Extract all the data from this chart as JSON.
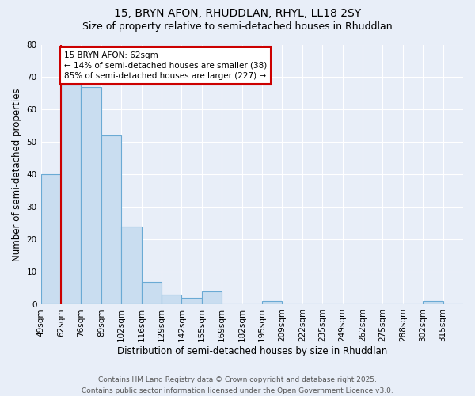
{
  "title_line1": "15, BRYN AFON, RHUDDLAN, RHYL, LL18 2SY",
  "title_line2": "Size of property relative to semi-detached houses in Rhuddlan",
  "xlabel": "Distribution of semi-detached houses by size in Rhuddlan",
  "ylabel": "Number of semi-detached properties",
  "categories": [
    "49sqm",
    "62sqm",
    "76sqm",
    "89sqm",
    "102sqm",
    "116sqm",
    "129sqm",
    "142sqm",
    "155sqm",
    "169sqm",
    "182sqm",
    "195sqm",
    "209sqm",
    "222sqm",
    "235sqm",
    "249sqm",
    "262sqm",
    "275sqm",
    "288sqm",
    "302sqm",
    "315sqm"
  ],
  "values": [
    40,
    68,
    67,
    52,
    24,
    7,
    3,
    2,
    4,
    0,
    0,
    1,
    0,
    0,
    0,
    0,
    0,
    0,
    0,
    1,
    0
  ],
  "bar_color": "#c9ddf0",
  "bar_edge_color": "#6aaad4",
  "bg_color": "#e8eef8",
  "grid_color": "#ffffff",
  "vline_color": "#cc0000",
  "annotation_title": "15 BRYN AFON: 62sqm",
  "annotation_line1": "← 14% of semi-detached houses are smaller (38)",
  "annotation_line2": "85% of semi-detached houses are larger (227) →",
  "annotation_box_color": "#ffffff",
  "annotation_box_edge_color": "#cc0000",
  "ylim": [
    0,
    80
  ],
  "yticks": [
    0,
    10,
    20,
    30,
    40,
    50,
    60,
    70,
    80
  ],
  "footer_line1": "Contains HM Land Registry data © Crown copyright and database right 2025.",
  "footer_line2": "Contains public sector information licensed under the Open Government Licence v3.0.",
  "title_fontsize": 10,
  "subtitle_fontsize": 9,
  "axis_label_fontsize": 8.5,
  "tick_fontsize": 7.5,
  "annotation_fontsize": 7.5,
  "footer_fontsize": 6.5
}
